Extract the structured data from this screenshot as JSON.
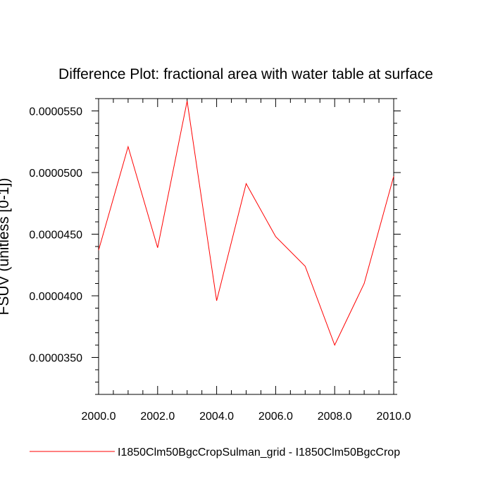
{
  "chart_data": {
    "type": "line",
    "title": "Difference Plot: fractional area with water table at surface",
    "ylabel": "FSUV (unitless [0-1])",
    "xlabel": "",
    "xlim": [
      2000,
      2010
    ],
    "ylim": [
      3.2e-05,
      5.6e-05
    ],
    "x_ticks": [
      2000,
      2002,
      2004,
      2006,
      2008,
      2010
    ],
    "x_tick_labels": [
      "2000.0",
      "2002.0",
      "2004.0",
      "2006.0",
      "2008.0",
      "2010.0"
    ],
    "y_ticks": [
      3.5e-05,
      4e-05,
      4.5e-05,
      5e-05,
      5.5e-05
    ],
    "y_tick_labels": [
      "0.0000350",
      "0.0000400",
      "0.0000450",
      "0.0000500",
      "0.0000550"
    ],
    "grid": false,
    "legend_position": "bottom",
    "series": [
      {
        "name": "I1850Clm50BgcCropSulman_grid - I1850Clm50BgcCrop",
        "color": "#ff0000",
        "x": [
          2000,
          2001,
          2002,
          2003,
          2004,
          2005,
          2006,
          2007,
          2008,
          2009,
          2010
        ],
        "values": [
          4.37e-05,
          5.21e-05,
          4.39e-05,
          5.58e-05,
          3.96e-05,
          4.91e-05,
          4.48e-05,
          4.24e-05,
          3.6e-05,
          4.1e-05,
          4.97e-05
        ]
      }
    ]
  }
}
